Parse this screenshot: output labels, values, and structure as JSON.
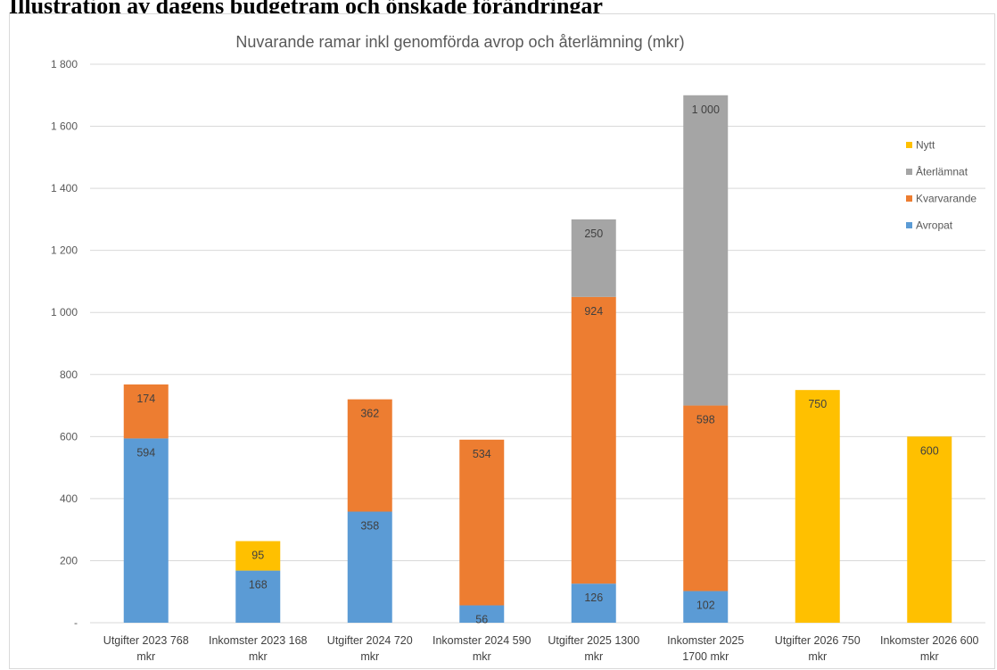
{
  "heading": "Illustration av dagens budgetram och önskade förändringar",
  "chart_data": {
    "type": "bar",
    "stacked": true,
    "title": "Nuvarande ramar inkl genomförda avrop och återlämning (mkr)",
    "xlabel": "",
    "ylabel": "",
    "ylim": [
      0,
      1800
    ],
    "yticks": [
      0,
      200,
      400,
      600,
      800,
      1000,
      1200,
      1400,
      1600,
      1800
    ],
    "ytick_labels": [
      "-",
      "200",
      "400",
      "600",
      "800",
      "1 000",
      "1 200",
      "1 400",
      "1 600",
      "1 800"
    ],
    "grid": true,
    "legend_position": "right",
    "categories": [
      "Utgifter 2023 768 mkr",
      "Inkomster 2023 168 mkr",
      "Utgifter 2024 720 mkr",
      "Inkomster 2024 590 mkr",
      "Utgifter 2025 1300 mkr",
      "Inkomster 2025 1700 mkr",
      "Utgifter 2026 750 mkr",
      "Inkomster 2026 600 mkr"
    ],
    "category_lines": [
      [
        "Utgifter 2023 768",
        "mkr"
      ],
      [
        "Inkomster 2023 168",
        "mkr"
      ],
      [
        "Utgifter 2024 720",
        "mkr"
      ],
      [
        "Inkomster 2024 590",
        "mkr"
      ],
      [
        "Utgifter 2025 1300",
        "mkr"
      ],
      [
        "Inkomster 2025",
        "1700 mkr"
      ],
      [
        "Utgifter 2026 750",
        "mkr"
      ],
      [
        "Inkomster 2026 600",
        "mkr"
      ]
    ],
    "series": [
      {
        "name": "Avropat",
        "color": "#5b9bd5",
        "values": [
          594,
          168,
          358,
          56,
          126,
          102,
          0,
          0
        ],
        "labels": [
          "594",
          "168",
          "358",
          "56",
          "126",
          "102",
          "",
          ""
        ]
      },
      {
        "name": "Kvarvarande",
        "color": "#ed7d31",
        "values": [
          174,
          0,
          362,
          534,
          924,
          598,
          0,
          0
        ],
        "labels": [
          "174",
          "",
          "362",
          "534",
          "924",
          "598",
          "",
          ""
        ]
      },
      {
        "name": "Återlämnat",
        "color": "#a5a5a5",
        "values": [
          0,
          0,
          0,
          0,
          250,
          1000,
          0,
          0
        ],
        "labels": [
          "",
          "",
          "",
          "",
          "250",
          "1 000",
          "",
          ""
        ]
      },
      {
        "name": "Nytt",
        "color": "#ffc000",
        "values": [
          0,
          95,
          0,
          0,
          0,
          0,
          750,
          600
        ],
        "labels": [
          "",
          "95",
          "",
          "",
          "",
          "",
          "750",
          "600"
        ]
      }
    ]
  }
}
